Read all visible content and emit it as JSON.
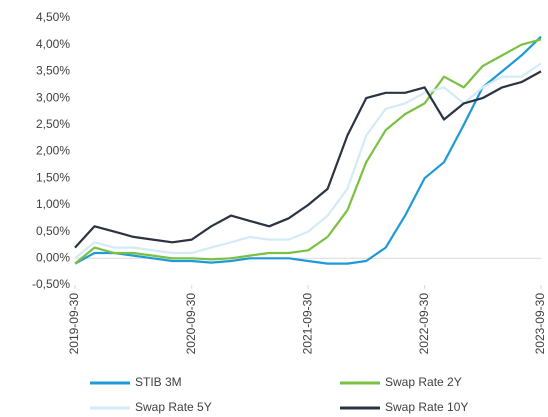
{
  "chart_data": {
    "type": "line",
    "x": [
      "2019-09-30",
      "2019-11-30",
      "2020-01-31",
      "2020-03-31",
      "2020-05-31",
      "2020-07-31",
      "2020-09-30",
      "2020-11-30",
      "2021-01-31",
      "2021-03-31",
      "2021-05-31",
      "2021-07-31",
      "2021-09-30",
      "2021-11-30",
      "2022-01-31",
      "2022-03-31",
      "2022-05-31",
      "2022-07-31",
      "2022-09-30",
      "2022-11-30",
      "2023-01-31",
      "2023-03-31",
      "2023-05-31",
      "2023-07-31",
      "2023-09-30"
    ],
    "xlim": [
      "2019-09-30",
      "2023-09-30"
    ],
    "xticks": [
      "2019-09-30",
      "2020-09-30",
      "2021-09-30",
      "2022-09-30",
      "2023-09-30"
    ],
    "ylim": [
      -0.5,
      4.5
    ],
    "yticks": [
      {
        "value": -0.5,
        "label": "-0,50%"
      },
      {
        "value": 0,
        "label": "0,00%"
      },
      {
        "value": 0.5,
        "label": "0,50%"
      },
      {
        "value": 1,
        "label": "1,00%"
      },
      {
        "value": 1.5,
        "label": "1,50%"
      },
      {
        "value": 2,
        "label": "2,00%"
      },
      {
        "value": 2.5,
        "label": "2,50%"
      },
      {
        "value": 3,
        "label": "3,00%"
      },
      {
        "value": 3.5,
        "label": "3,50%"
      },
      {
        "value": 4,
        "label": "4,00%"
      },
      {
        "value": 4.5,
        "label": "4,50%"
      }
    ],
    "series": [
      {
        "name": "STIB 3M",
        "color": "#1f9ad6",
        "values": [
          -0.1,
          0.1,
          0.1,
          0.05,
          0.0,
          -0.05,
          -0.05,
          -0.08,
          -0.05,
          0.0,
          0.0,
          0.0,
          -0.05,
          -0.1,
          -0.1,
          -0.05,
          0.2,
          0.8,
          1.5,
          1.8,
          2.5,
          3.2,
          3.5,
          3.8,
          4.15
        ]
      },
      {
        "name": "Swap Rate 2Y",
        "color": "#7ac143",
        "values": [
          -0.1,
          0.2,
          0.1,
          0.1,
          0.05,
          0.0,
          0.0,
          -0.02,
          0.0,
          0.05,
          0.1,
          0.1,
          0.15,
          0.4,
          0.9,
          1.8,
          2.4,
          2.7,
          2.9,
          3.4,
          3.2,
          3.6,
          3.8,
          4.0,
          4.1
        ]
      },
      {
        "name": "Swap Rate 5Y",
        "color": "#d3ebf8",
        "values": [
          0.0,
          0.3,
          0.2,
          0.2,
          0.15,
          0.1,
          0.1,
          0.2,
          0.3,
          0.4,
          0.35,
          0.35,
          0.5,
          0.8,
          1.3,
          2.3,
          2.8,
          2.9,
          3.1,
          3.2,
          2.9,
          3.2,
          3.4,
          3.4,
          3.65
        ]
      },
      {
        "name": "Swap Rate 10Y",
        "color": "#2b3440",
        "values": [
          0.2,
          0.6,
          0.5,
          0.4,
          0.35,
          0.3,
          0.35,
          0.6,
          0.8,
          0.7,
          0.6,
          0.75,
          1.0,
          1.3,
          2.3,
          3.0,
          3.1,
          3.1,
          3.2,
          2.6,
          2.9,
          3.0,
          3.2,
          3.3,
          3.5
        ]
      }
    ]
  }
}
